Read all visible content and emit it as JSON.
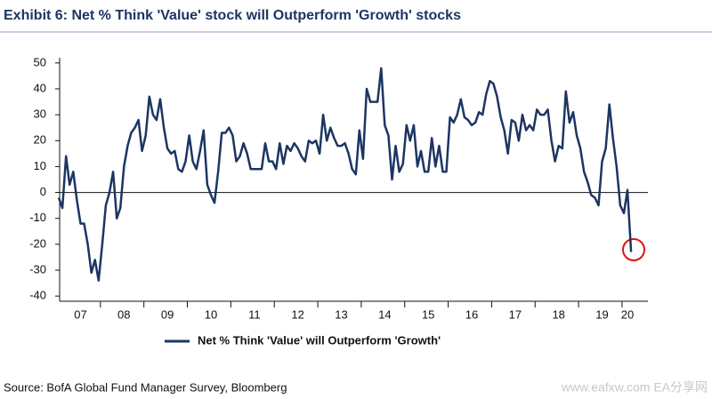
{
  "chart_data": {
    "type": "line",
    "title": "Exhibit 6: Net % Think 'Value' stock will Outperform 'Growth' stocks",
    "categories": [
      null,
      null,
      null,
      null,
      null,
      null,
      "07",
      null,
      null,
      null,
      null,
      null,
      null,
      null,
      null,
      null,
      null,
      null,
      "08",
      null,
      null,
      null,
      null,
      null,
      null,
      null,
      null,
      null,
      null,
      null,
      "09",
      null,
      null,
      null,
      null,
      null,
      null,
      null,
      null,
      null,
      null,
      null,
      "10",
      null,
      null,
      null,
      null,
      null,
      null,
      null,
      null,
      null,
      null,
      null,
      "11",
      null,
      null,
      null,
      null,
      null,
      null,
      null,
      null,
      null,
      null,
      null,
      "12",
      null,
      null,
      null,
      null,
      null,
      null,
      null,
      null,
      null,
      null,
      null,
      "13",
      null,
      null,
      null,
      null,
      null,
      null,
      null,
      null,
      null,
      null,
      null,
      "14",
      null,
      null,
      null,
      null,
      null,
      null,
      null,
      null,
      null,
      null,
      null,
      "15",
      null,
      null,
      null,
      null,
      null,
      null,
      null,
      null,
      null,
      null,
      null,
      "16",
      null,
      null,
      null,
      null,
      null,
      null,
      null,
      null,
      null,
      null,
      null,
      "17",
      null,
      null,
      null,
      null,
      null,
      null,
      null,
      null,
      null,
      null,
      null,
      "18",
      null,
      null,
      null,
      null,
      null,
      null,
      null,
      null,
      null,
      null,
      null,
      "19",
      null,
      null,
      null,
      null,
      null,
      null,
      "20",
      null
    ],
    "series": [
      {
        "name": "Net % Think 'Value' will Outperform 'Growth'",
        "color": "#1c3563",
        "values": [
          -2,
          -6,
          14,
          3,
          8,
          -3,
          -12,
          -12,
          -20,
          -31,
          -26,
          -34,
          -20,
          -5,
          0,
          8,
          -10,
          -6,
          10,
          18,
          23,
          25,
          28,
          16,
          22,
          37,
          30,
          28,
          36,
          25,
          17,
          15,
          16,
          9,
          8,
          12,
          22,
          12,
          9,
          16,
          24,
          3,
          -1,
          -4,
          8,
          23,
          23,
          25,
          22,
          12,
          14,
          19,
          15,
          9,
          9,
          9,
          9,
          19,
          12,
          12,
          9,
          19,
          11,
          18,
          16,
          19,
          17,
          14,
          12,
          20,
          19,
          20,
          15,
          30,
          20,
          25,
          21,
          18,
          18,
          19,
          15,
          9,
          7,
          24,
          13,
          40,
          35,
          35,
          35,
          48,
          26,
          22,
          5,
          18,
          8,
          11,
          26,
          20,
          26,
          10,
          16,
          8,
          8,
          21,
          10,
          18,
          8,
          8,
          29,
          27,
          30,
          36,
          29,
          28,
          26,
          27,
          31,
          30,
          38,
          43,
          42,
          37,
          29,
          24,
          15,
          28,
          27,
          20,
          30,
          24,
          26,
          24,
          32,
          30,
          30,
          32,
          20,
          12,
          18,
          17,
          39,
          27,
          31,
          22,
          17,
          8,
          4,
          -1,
          -2,
          -5,
          12,
          17,
          34,
          21,
          10,
          -5,
          -8,
          1,
          -23
        ]
      }
    ],
    "ylim": [
      -42,
      52
    ],
    "yticks": [
      -40,
      -30,
      -20,
      -10,
      0,
      10,
      20,
      30,
      40,
      50
    ],
    "legend": "bottom"
  },
  "footer": {
    "source": "Source: BofA Global Fund Manager Survey, Bloomberg",
    "watermark": "www.eafxw.com  EA分享网"
  }
}
